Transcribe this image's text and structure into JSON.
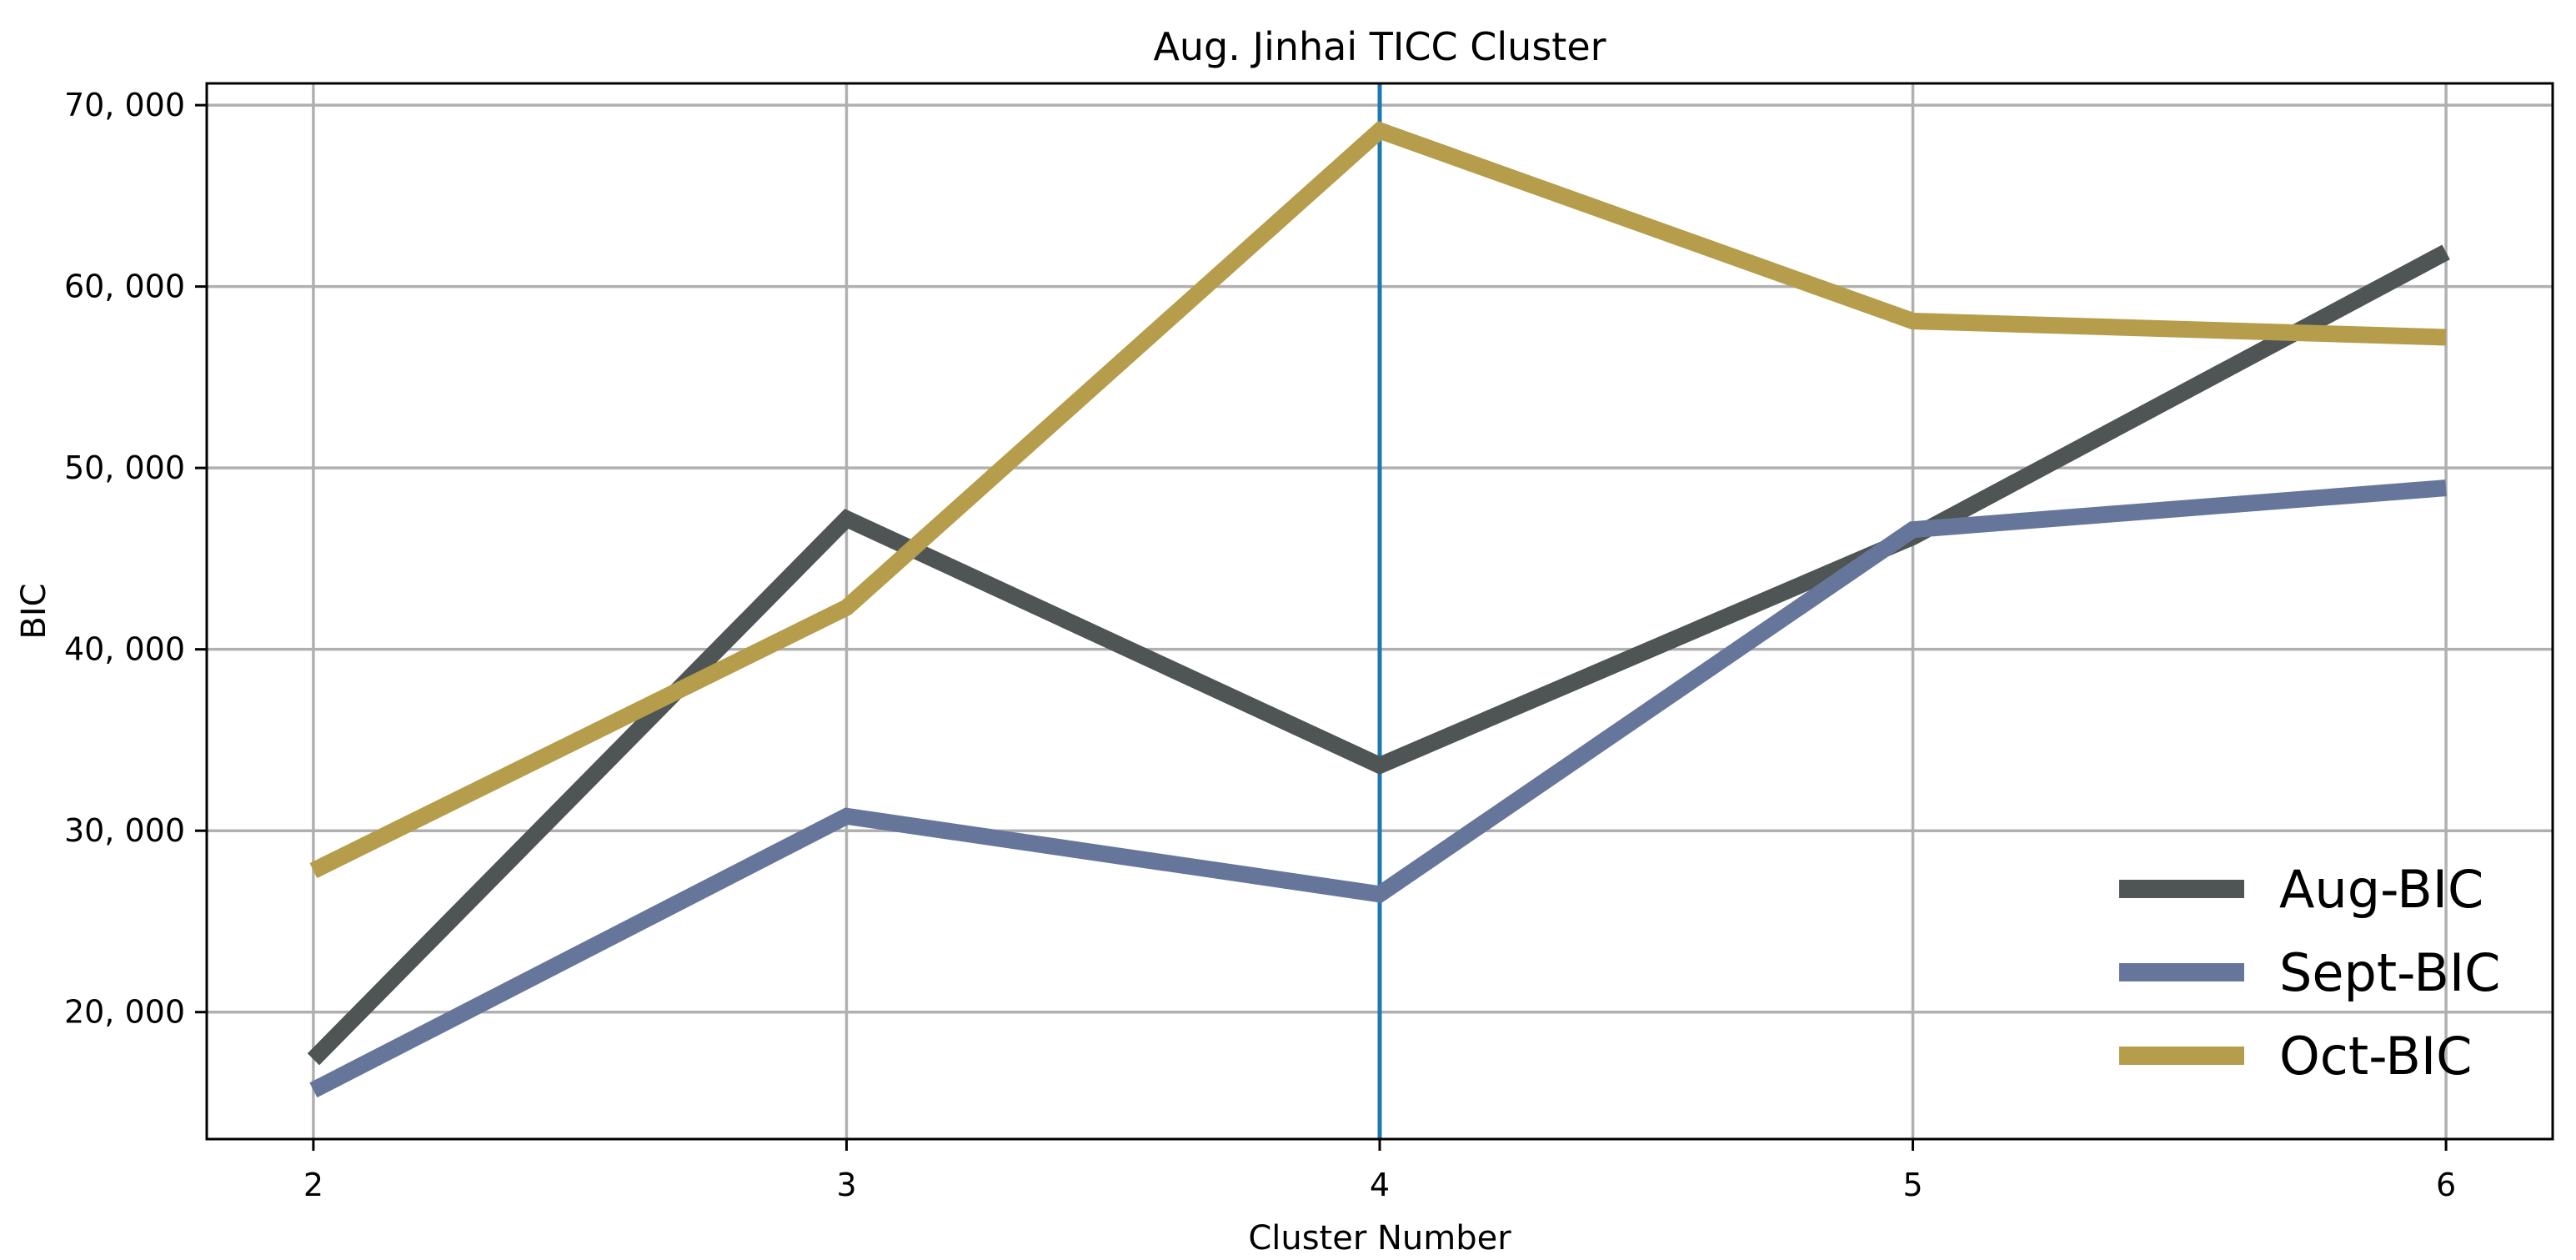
{
  "chart_data": {
    "type": "line",
    "title": "Aug. Jinhai TICC Cluster",
    "xlabel": "Cluster Number",
    "ylabel": "BIC",
    "x": [
      2,
      3,
      4,
      5,
      6
    ],
    "x_tick_labels": [
      "2",
      "3",
      "4",
      "5",
      "6"
    ],
    "xlim": [
      1.8,
      6.2
    ],
    "ylim": [
      13000,
      71200
    ],
    "y_ticks": [
      20000,
      30000,
      40000,
      50000,
      60000,
      70000
    ],
    "y_tick_labels": [
      "20, 000",
      "30, 000",
      "40, 000",
      "50, 000",
      "60, 000",
      "70, 000"
    ],
    "grid": true,
    "legend_position": "lower-right",
    "vertical_marker_x": 4,
    "vertical_marker_color": "#1f77b4",
    "series": [
      {
        "name": "Aug-BIC",
        "color": "#4e5554",
        "values": [
          17400,
          47200,
          33600,
          46200,
          61900
        ]
      },
      {
        "name": "Sept-BIC",
        "color": "#66769a",
        "values": [
          15700,
          30800,
          26500,
          46600,
          48900
        ]
      },
      {
        "name": "Oct-BIC",
        "color": "#b69d4c",
        "values": [
          27800,
          42300,
          68600,
          58100,
          57200
        ]
      }
    ]
  }
}
